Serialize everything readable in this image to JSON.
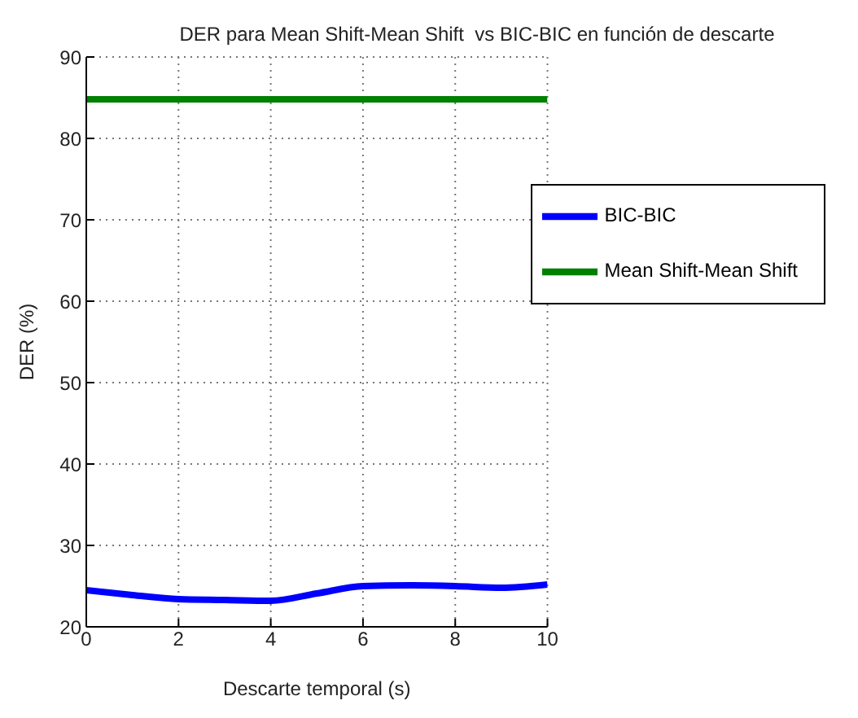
{
  "chart_data": {
    "type": "line",
    "title": "DER para Mean Shift-Mean Shift  vs BIC-BIC en función de descarte",
    "xlabel": "Descarte temporal (s)",
    "ylabel": "DER (%)",
    "x": [
      0,
      1,
      2,
      3,
      4,
      5,
      6,
      7,
      8,
      9,
      10
    ],
    "series": [
      {
        "name": "BIC-BIC",
        "color": "#0000ff",
        "values": [
          24.5,
          23.9,
          23.4,
          23.3,
          23.2,
          24.1,
          25,
          25.1,
          25,
          24.8,
          25.2
        ]
      },
      {
        "name": "Mean Shift-Mean Shift",
        "color": "#008000",
        "values": [
          84.8,
          84.8,
          84.8,
          84.8,
          84.8,
          84.8,
          84.8,
          84.8,
          84.8,
          84.8,
          84.8
        ]
      }
    ],
    "xlim": [
      0,
      10
    ],
    "xticks": [
      0,
      2,
      4,
      6,
      8,
      10
    ],
    "ylim": [
      20,
      90
    ],
    "yticks": [
      20,
      30,
      40,
      50,
      60,
      70,
      80,
      90
    ],
    "grid": true,
    "legend": "top right",
    "marker": "none",
    "line_style": "solid"
  }
}
